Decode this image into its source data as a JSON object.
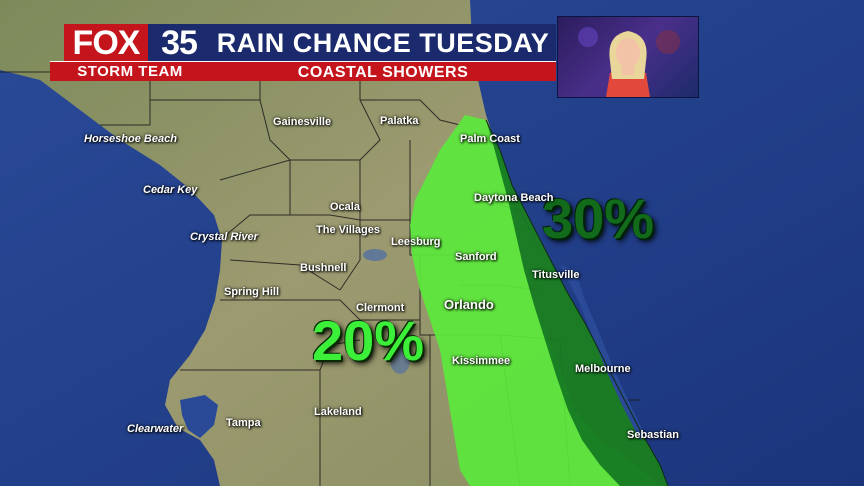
{
  "header": {
    "logo_fox": "FOX",
    "logo_number": "35",
    "logo_team": "STORM TEAM",
    "title": "RAIN CHANCE TUESDAY",
    "subtitle": "COASTAL SHOWERS"
  },
  "zones": [
    {
      "label": "20%",
      "value": 20,
      "color": "#5be83c"
    },
    {
      "label": "30%",
      "value": 30,
      "color": "#157a22"
    }
  ],
  "cities": {
    "horseshoe_beach": "Horseshoe Beach",
    "cedar_key": "Cedar Key",
    "crystal_river": "Crystal River",
    "spring_hill": "Spring Hill",
    "clearwater": "Clearwater",
    "tampa": "Tampa",
    "gainesville": "Gainesville",
    "palatka": "Palatka",
    "palm_coast": "Palm Coast",
    "daytona_beach": "Daytona Beach",
    "ocala": "Ocala",
    "the_villages": "The Villages",
    "leesburg": "Leesburg",
    "bushnell": "Bushnell",
    "sanford": "Sanford",
    "titusville": "Titusville",
    "clermont": "Clermont",
    "orlando": "Orlando",
    "kissimmee": "Kissimmee",
    "melbourne": "Melbourne",
    "lakeland": "Lakeland",
    "sebastian": "Sebastian"
  },
  "colors": {
    "ocean": "#1f3b85",
    "land": "#8f8f64",
    "zone_light": "#5be83c",
    "zone_dark": "#157a22",
    "brand_red": "#c4151c",
    "brand_blue": "#1a2a6c"
  }
}
